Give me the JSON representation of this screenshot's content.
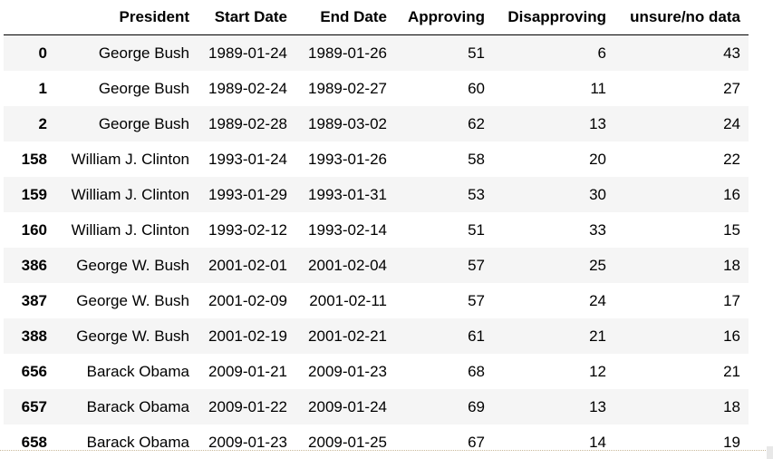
{
  "columns": {
    "index": "",
    "president": "President",
    "start_date": "Start Date",
    "end_date": "End Date",
    "approving": "Approving",
    "disapproving": "Disapproving",
    "unsure": "unsure/no data"
  },
  "rows": [
    {
      "index": "0",
      "president": "George Bush",
      "start_date": "1989-01-24",
      "end_date": "1989-01-26",
      "approving": "51",
      "disapproving": "6",
      "unsure": "43"
    },
    {
      "index": "1",
      "president": "George Bush",
      "start_date": "1989-02-24",
      "end_date": "1989-02-27",
      "approving": "60",
      "disapproving": "11",
      "unsure": "27"
    },
    {
      "index": "2",
      "president": "George Bush",
      "start_date": "1989-02-28",
      "end_date": "1989-03-02",
      "approving": "62",
      "disapproving": "13",
      "unsure": "24"
    },
    {
      "index": "158",
      "president": "William J. Clinton",
      "start_date": "1993-01-24",
      "end_date": "1993-01-26",
      "approving": "58",
      "disapproving": "20",
      "unsure": "22"
    },
    {
      "index": "159",
      "president": "William J. Clinton",
      "start_date": "1993-01-29",
      "end_date": "1993-01-31",
      "approving": "53",
      "disapproving": "30",
      "unsure": "16"
    },
    {
      "index": "160",
      "president": "William J. Clinton",
      "start_date": "1993-02-12",
      "end_date": "1993-02-14",
      "approving": "51",
      "disapproving": "33",
      "unsure": "15"
    },
    {
      "index": "386",
      "president": "George W. Bush",
      "start_date": "2001-02-01",
      "end_date": "2001-02-04",
      "approving": "57",
      "disapproving": "25",
      "unsure": "18"
    },
    {
      "index": "387",
      "president": "George W. Bush",
      "start_date": "2001-02-09",
      "end_date": "2001-02-11",
      "approving": "57",
      "disapproving": "24",
      "unsure": "17"
    },
    {
      "index": "388",
      "president": "George W. Bush",
      "start_date": "2001-02-19",
      "end_date": "2001-02-21",
      "approving": "61",
      "disapproving": "21",
      "unsure": "16"
    },
    {
      "index": "656",
      "president": "Barack Obama",
      "start_date": "2009-01-21",
      "end_date": "2009-01-23",
      "approving": "68",
      "disapproving": "12",
      "unsure": "21"
    },
    {
      "index": "657",
      "president": "Barack Obama",
      "start_date": "2009-01-22",
      "end_date": "2009-01-24",
      "approving": "69",
      "disapproving": "13",
      "unsure": "18"
    },
    {
      "index": "658",
      "president": "Barack Obama",
      "start_date": "2009-01-23",
      "end_date": "2009-01-25",
      "approving": "67",
      "disapproving": "14",
      "unsure": "19"
    }
  ]
}
